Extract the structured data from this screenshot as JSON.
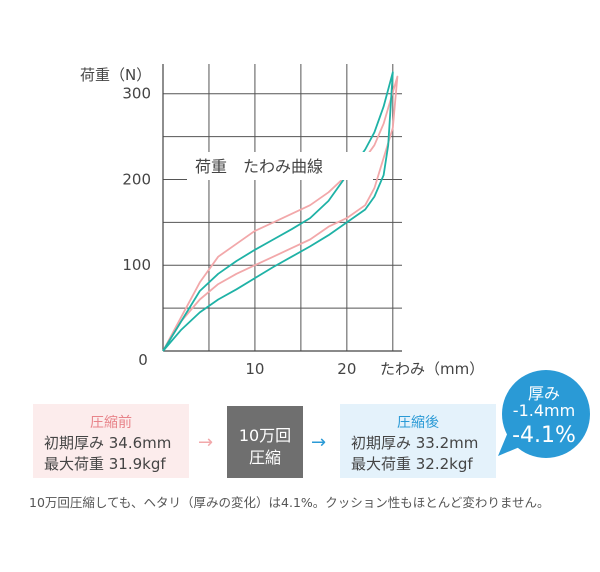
{
  "chart_data": {
    "type": "line",
    "title": "荷重　たわみ曲線",
    "ylabel": "荷重（N）",
    "xlabel": "たわみ（mm）",
    "xlim": [
      0,
      26
    ],
    "ylim": [
      0,
      330
    ],
    "x_ticks": [
      10,
      20
    ],
    "y_ticks": [
      0,
      100,
      200,
      300
    ],
    "origin_label": "0",
    "grid": true,
    "series": [
      {
        "color": "#f2a8aa",
        "x": [
          0,
          2,
          4,
          6,
          8,
          10,
          12,
          14,
          16,
          18,
          20,
          22,
          23,
          24,
          25.5
        ],
        "y": [
          0,
          40,
          80,
          110,
          125,
          140,
          150,
          160,
          170,
          185,
          205,
          225,
          240,
          265,
          320
        ],
        "back_x": [
          25.5,
          25,
          24,
          23,
          22,
          20,
          18,
          16,
          14,
          12,
          10,
          8,
          6,
          4,
          2,
          0
        ],
        "back_y": [
          320,
          260,
          225,
          190,
          170,
          155,
          145,
          130,
          120,
          110,
          100,
          90,
          78,
          60,
          35,
          0
        ]
      },
      {
        "color": "#1fb2a6",
        "x": [
          0,
          2,
          4,
          6,
          8,
          10,
          12,
          14,
          16,
          18,
          20,
          22,
          23,
          24,
          25
        ],
        "y": [
          0,
          35,
          70,
          90,
          105,
          118,
          130,
          142,
          155,
          175,
          205,
          235,
          255,
          285,
          325
        ],
        "back_x": [
          25,
          24.5,
          24,
          23,
          22,
          20,
          18,
          16,
          14,
          12,
          10,
          8,
          6,
          4,
          2,
          0
        ],
        "back_y": [
          325,
          240,
          205,
          180,
          165,
          150,
          135,
          122,
          110,
          98,
          85,
          72,
          60,
          45,
          25,
          0
        ]
      }
    ]
  },
  "before": {
    "title": "圧縮前",
    "line1": "初期厚み 34.6mm",
    "line2": "最大荷重 31.9kgf"
  },
  "cycle": {
    "line1": "10万回",
    "line2": "圧縮"
  },
  "after": {
    "title": "圧縮後",
    "line1": "初期厚み 33.2mm",
    "line2": "最大荷重 32.2kgf"
  },
  "bubble": {
    "line1": "厚み",
    "line2": "-1.4mm",
    "line3": "-4.1%"
  },
  "arrows": {
    "first": "→",
    "second": "→"
  },
  "footnote": "10万回圧縮しても、ヘタリ（厚みの変化）は4.1%。クッション性もほとんど変わりません。",
  "colors": {
    "before_series": "#f2a8aa",
    "after_series": "#1fb2a6",
    "accent_blue": "#2a9ad6",
    "cycle_box": "#6f6f6f"
  }
}
